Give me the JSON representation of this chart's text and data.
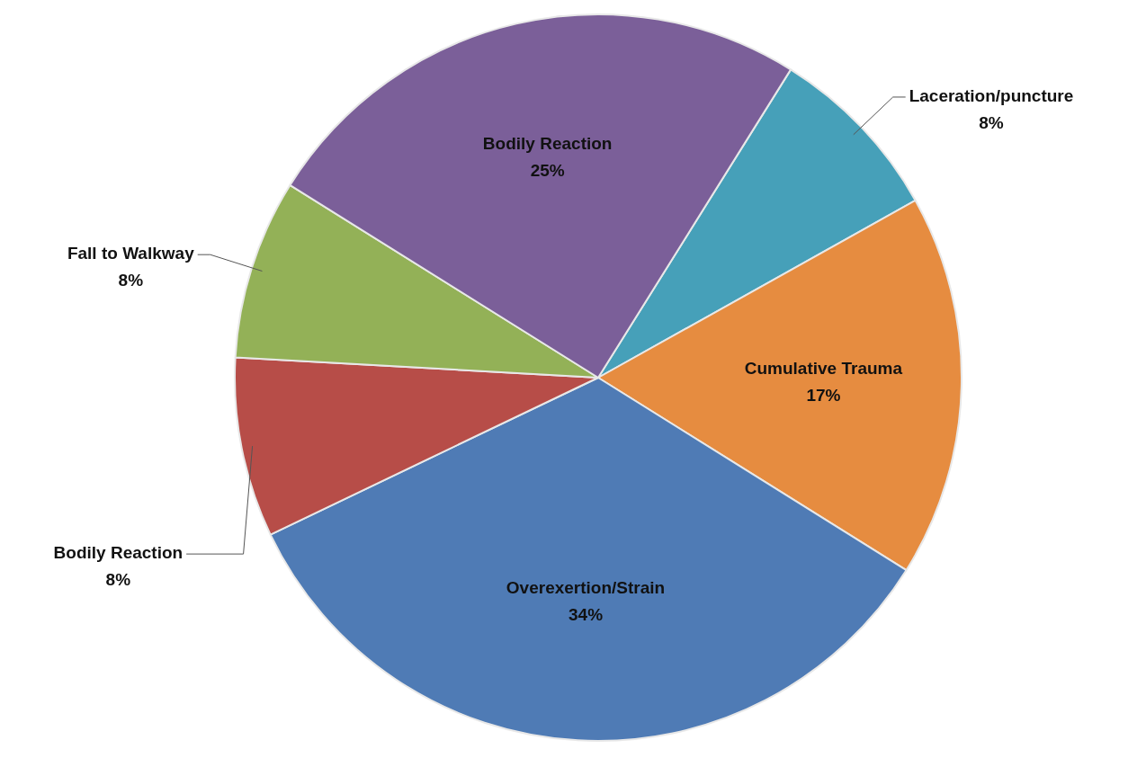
{
  "chart_data": {
    "type": "pie",
    "categories": [
      "Laceration/puncture",
      "Cumulative Trauma",
      "Overexertion/Strain",
      "Bodily Reaction",
      "Fall to Walkway",
      "Bodily Reaction"
    ],
    "values": [
      8,
      17,
      34,
      8,
      8,
      25
    ],
    "value_labels": [
      "8%",
      "17%",
      "34%",
      "8%",
      "8%",
      "25%"
    ],
    "colors": [
      "#46a0b9",
      "#e68c40",
      "#4f7bb5",
      "#b74d48",
      "#93b157",
      "#7b5f99"
    ]
  }
}
